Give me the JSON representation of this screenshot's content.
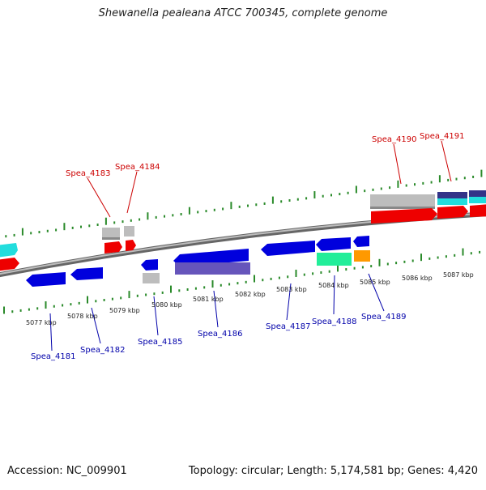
{
  "title": "Shewanella pealeana ATCC 700345, complete genome",
  "footer": {
    "accession": "Accession: NC_009901",
    "summary": "Topology: circular; Length: 5,174,581 bp; Genes: 4,420"
  },
  "colors": {
    "backbone": "#8a8a8a",
    "ticks": "#2a8a2a",
    "top_labels": "#cc0000",
    "bottom_labels": "#0000aa",
    "red_feature": "#ee0000",
    "blue_feature": "#0000dd",
    "gray_feature": "#b8b8b8",
    "cyan_feature": "#22dddd",
    "navy_feature": "#333388",
    "purple_feature": "#6655bb",
    "green_feature": "#22ee99",
    "orange_feature": "#ff9900"
  },
  "scale_labels": [
    "5077 kbp",
    "5078 kbp",
    "5079 kbp",
    "5080 kbp",
    "5081 kbp",
    "5082 kbp",
    "5083 kbp",
    "5084 kbp",
    "5085 kbp",
    "5086 kbp",
    "5087 kbp"
  ],
  "top_gene_labels": [
    "Spea_4183",
    "Spea_4184",
    "Spea_4190",
    "Spea_4191"
  ],
  "bottom_gene_labels": [
    "Spea_4181",
    "Spea_4182",
    "Spea_4185",
    "Spea_4186",
    "Spea_4187",
    "Spea_4188",
    "Spea_4189"
  ]
}
